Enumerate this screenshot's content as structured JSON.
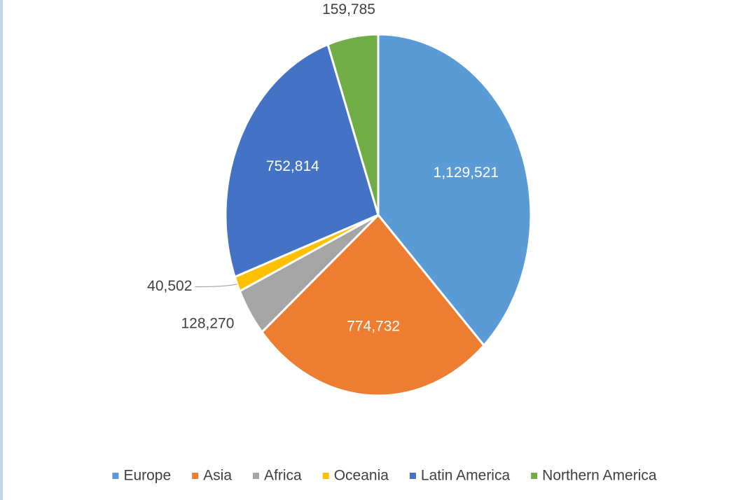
{
  "chart_data": {
    "type": "pie",
    "categories": [
      "Europe",
      "Asia",
      "Africa",
      "Oceania",
      "Latin America",
      "Northern America"
    ],
    "values": [
      1129521,
      774732,
      128270,
      40502,
      752814,
      159785
    ],
    "value_labels": [
      "1,129,521",
      "774,732",
      "128,270",
      "40,502",
      "752,814",
      "159,785"
    ],
    "colors": [
      "#5b9bd5",
      "#ed7d31",
      "#a5a5a5",
      "#ffc000",
      "#4472c4",
      "#70ad47"
    ],
    "legend": "bottom"
  }
}
